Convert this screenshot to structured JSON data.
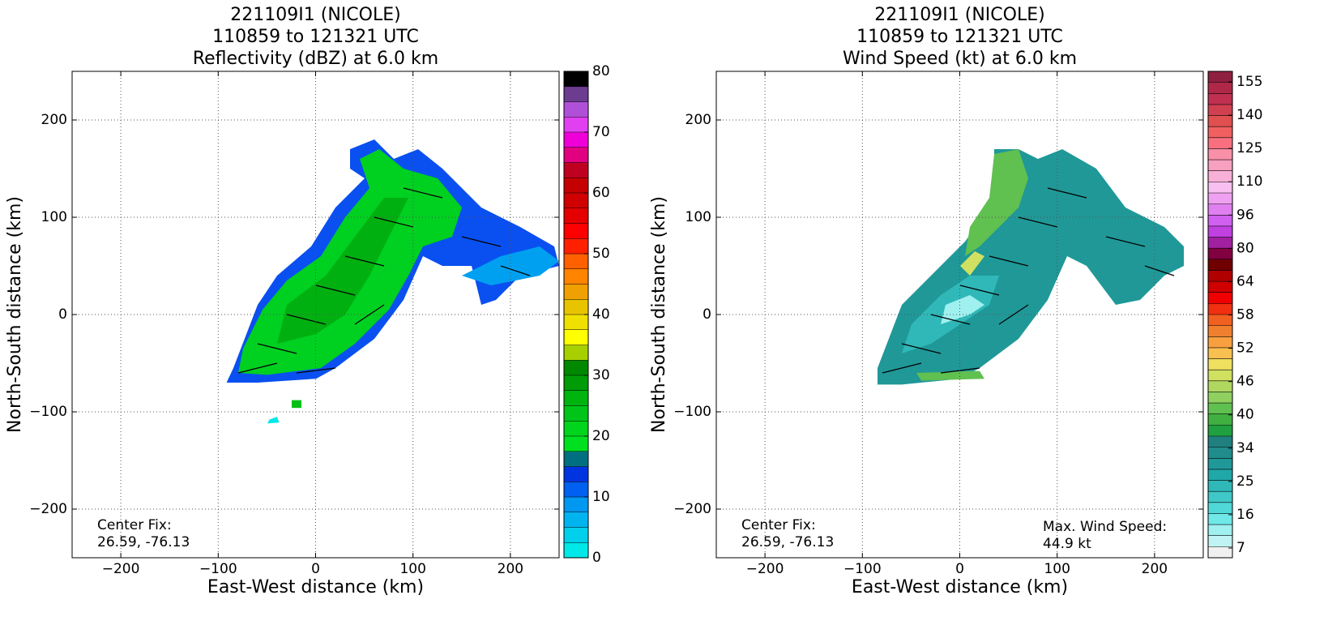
{
  "chart_data": [
    {
      "type": "heatmap",
      "title": [
        "221109I1 (NICOLE)",
        "110859 to 121321 UTC",
        "Reflectivity (dBZ) at 6.0 km"
      ],
      "xlabel": "East-West distance (km)",
      "ylabel": "North-South distance (km)",
      "xlim": [
        -250,
        250
      ],
      "ylim": [
        -250,
        250
      ],
      "xticks": [
        {
          "value": -200,
          "label": "−200"
        },
        {
          "value": -100,
          "label": "−100"
        },
        0,
        100,
        200
      ],
      "yticks": [
        {
          "value": -200,
          "label": "−200"
        },
        {
          "value": -100,
          "label": "−100"
        },
        0,
        100,
        200
      ],
      "grid": true,
      "annotations": [
        "Center Fix:",
        "26.59, -76.13"
      ],
      "colorbar": {
        "lim": [
          0,
          80
        ],
        "ticks": [
          0,
          10,
          20,
          30,
          40,
          50,
          60,
          70,
          80
        ],
        "colors": [
          "#00e8e8",
          "#00d0ec",
          "#00b4f0",
          "#0098f0",
          "#0060f0",
          "#0034e0",
          "#007080",
          "#00e020",
          "#00d41c",
          "#00c418",
          "#00b410",
          "#009c08",
          "#008800",
          "#a8d000",
          "#ffff00",
          "#f0e000",
          "#e8c400",
          "#f0a000",
          "#ff8400",
          "#ff6000",
          "#ff2000",
          "#ff0000",
          "#e40000",
          "#d00000",
          "#c40000",
          "#c00020",
          "#e00080",
          "#f000d8",
          "#e040f0",
          "#b050d8",
          "#6c3c90",
          "#000000"
        ]
      }
    },
    {
      "type": "heatmap",
      "title": [
        "221109I1 (NICOLE)",
        "110859 to 121321 UTC",
        "Wind Speed (kt) at 6.0 km"
      ],
      "xlabel": "East-West distance (km)",
      "ylabel": "North-South distance (km)",
      "xlim": [
        -250,
        250
      ],
      "ylim": [
        -250,
        250
      ],
      "xticks": [
        {
          "value": -200,
          "label": "−200"
        },
        {
          "value": -100,
          "label": "−100"
        },
        0,
        100,
        200
      ],
      "yticks": [
        {
          "value": -200,
          "label": "−200"
        },
        {
          "value": -100,
          "label": "−100"
        },
        0,
        100,
        200
      ],
      "grid": true,
      "annotations": [
        "Center Fix:",
        "26.59, -76.13"
      ],
      "max_label": [
        "Max. Wind Speed:",
        "44.9 kt"
      ],
      "colorbar": {
        "ticks": [
          7,
          16,
          25,
          34,
          40,
          46,
          52,
          58,
          64,
          80,
          96,
          110,
          125,
          140,
          155
        ],
        "colors": [
          "#f0f0f0",
          "#c0f4f4",
          "#a0f0f0",
          "#70e8e8",
          "#50d8d8",
          "#40c8c8",
          "#30b8b8",
          "#20a8a8",
          "#209898",
          "#208c8c",
          "#208080",
          "#20a040",
          "#40b040",
          "#60c050",
          "#90d060",
          "#b0d860",
          "#d0e060",
          "#f0e060",
          "#f8c050",
          "#f8a040",
          "#f08030",
          "#f06020",
          "#f03010",
          "#f00000",
          "#d00000",
          "#b00000",
          "#700000",
          "#800040",
          "#a020a0",
          "#c040e0",
          "#d060f0",
          "#e080f0",
          "#f0a0f0",
          "#f8c0f0",
          "#f8b0d8",
          "#f8a0c0",
          "#f890a8",
          "#f87080",
          "#f06060",
          "#e05050",
          "#d04050",
          "#c03050",
          "#b02848",
          "#902040"
        ]
      }
    }
  ]
}
